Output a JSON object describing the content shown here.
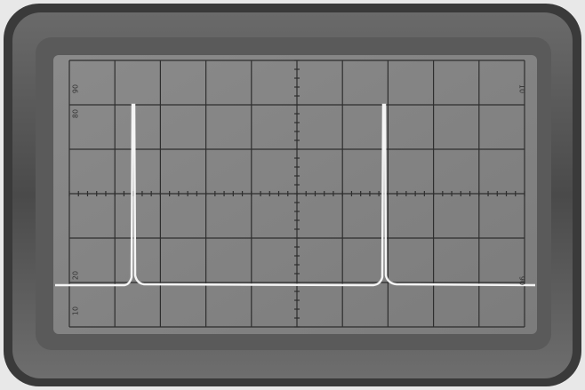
{
  "screen": {
    "left_labels": [
      "90",
      "80",
      "20",
      "10"
    ],
    "right_labels": [
      "10",
      "90"
    ]
  }
}
